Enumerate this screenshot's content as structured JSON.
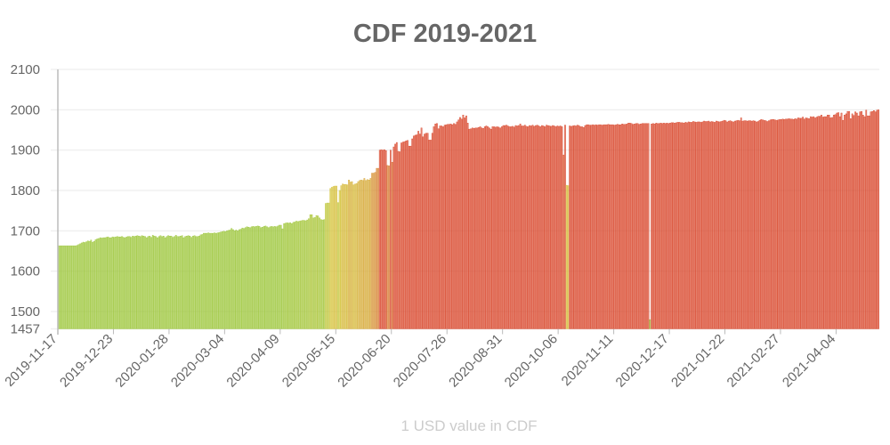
{
  "chart_data": {
    "type": "bar",
    "title": "CDF 2019-2021",
    "xlabel": "1 USD value in CDF",
    "ylabel": "",
    "ylim": [
      1457,
      2100
    ],
    "yticks": [
      "1457",
      "1500",
      "1600",
      "1700",
      "1800",
      "1900",
      "2000",
      "2100"
    ],
    "xticks": [
      "2019-11-17",
      "2019-12-23",
      "2020-01-28",
      "2020-03-04",
      "2020-04-09",
      "2020-05-15",
      "2020-06-20",
      "2020-07-26",
      "2020-08-31",
      "2020-10-06",
      "2020-11-11",
      "2020-12-17",
      "2021-01-22",
      "2021-02-27",
      "2021-04-04"
    ],
    "x_interval": "daily",
    "grid": true,
    "legend": "none",
    "colors": {
      "low": "#9cc63a",
      "mid": "#d6c63c",
      "high": "#d8452a"
    },
    "values": [
      1663,
      1663,
      1663,
      1663,
      1663,
      1663,
      1663,
      1663,
      1663,
      1663,
      1663,
      1663,
      1664,
      1666,
      1668,
      1670,
      1672,
      1671,
      1673,
      1675,
      1674,
      1677,
      1672,
      1674,
      1678,
      1680,
      1681,
      1683,
      1682,
      1683,
      1683,
      1684,
      1685,
      1683,
      1683,
      1685,
      1684,
      1685,
      1686,
      1685,
      1685,
      1686,
      1684,
      1683,
      1685,
      1686,
      1686,
      1684,
      1687,
      1686,
      1687,
      1688,
      1687,
      1686,
      1688,
      1687,
      1686,
      1683,
      1686,
      1687,
      1684,
      1689,
      1687,
      1686,
      1683,
      1686,
      1688,
      1686,
      1687,
      1683,
      1686,
      1688,
      1687,
      1687,
      1684,
      1686,
      1689,
      1686,
      1686,
      1687,
      1688,
      1683,
      1686,
      1687,
      1688,
      1687,
      1684,
      1687,
      1688,
      1686,
      1686,
      1687,
      1690,
      1691,
      1694,
      1694,
      1694,
      1695,
      1694,
      1694,
      1694,
      1695,
      1694,
      1695,
      1696,
      1697,
      1698,
      1699,
      1698,
      1700,
      1701,
      1702,
      1706,
      1703,
      1700,
      1702,
      1700,
      1703,
      1704,
      1707,
      1706,
      1708,
      1710,
      1709,
      1708,
      1710,
      1711,
      1710,
      1711,
      1712,
      1711,
      1708,
      1709,
      1711,
      1712,
      1710,
      1708,
      1710,
      1711,
      1710,
      1711,
      1710,
      1712,
      1714,
      1714,
      1705,
      1718,
      1719,
      1720,
      1719,
      1720,
      1718,
      1721,
      1722,
      1724,
      1723,
      1724,
      1725,
      1726,
      1726,
      1725,
      1727,
      1730,
      1740,
      1740,
      1732,
      1733,
      1738,
      1737,
      1732,
      1728,
      1727,
      1728,
      1768,
      1769,
      1769,
      1805,
      1808,
      1810,
      1811,
      1811,
      1770,
      1800,
      1812,
      1816,
      1815,
      1815,
      1814,
      1826,
      1821,
      1822,
      1814,
      1816,
      1817,
      1822,
      1825,
      1826,
      1825,
      1830,
      1825,
      1827,
      1826,
      1830,
      1843,
      1843,
      1845,
      1855,
      1855,
      1900,
      1901,
      1900,
      1901,
      1899,
      1862,
      1861,
      1900,
      1870,
      1908,
      1915,
      1919,
      1897,
      1896,
      1918,
      1920,
      1921,
      1923,
      1924,
      1910,
      1910,
      1928,
      1935,
      1937,
      1938,
      1947,
      1940,
      1955,
      1933,
      1940,
      1942,
      1942,
      1925,
      1925,
      1942,
      1958,
      1965,
      1966,
      1953,
      1960,
      1960,
      1958,
      1962,
      1963,
      1964,
      1964,
      1965,
      1963,
      1966,
      1964,
      1970,
      1975,
      1981,
      1977,
      1987,
      1980,
      1985,
      1967,
      1952,
      1953,
      1955,
      1954,
      1955,
      1955,
      1956,
      1958,
      1955,
      1954,
      1958,
      1960,
      1958,
      1955,
      1952,
      1958,
      1958,
      1957,
      1958,
      1957,
      1955,
      1958,
      1961,
      1961,
      1962,
      1960,
      1958,
      1958,
      1959,
      1957,
      1961,
      1960,
      1961,
      1965,
      1960,
      1960,
      1962,
      1959,
      1958,
      1961,
      1960,
      1962,
      1959,
      1961,
      1962,
      1960,
      1958,
      1961,
      1960,
      1958,
      1962,
      1961,
      1960,
      1959,
      1961,
      1960,
      1958,
      1960,
      1959,
      1960,
      1958,
      1888,
      1962,
      1813,
      1812,
      1960,
      1959,
      1960,
      1961,
      1960,
      1962,
      1961,
      1958,
      1958,
      1956,
      1961,
      1963,
      1963,
      1962,
      1962,
      1963,
      1962,
      1963,
      1962,
      1963,
      1963,
      1962,
      1963,
      1963,
      1963,
      1964,
      1963,
      1963,
      1963,
      1962,
      1963,
      1964,
      1963,
      1963,
      1965,
      1964,
      1964,
      1965,
      1967,
      1967,
      1966,
      1964,
      1965,
      1966,
      1966,
      1964,
      1965,
      1966,
      1966,
      1966,
      1966,
      1966,
      1480,
      1965,
      1966,
      1965,
      1967,
      1966,
      1966,
      1967,
      1966,
      1967,
      1966,
      1967,
      1966,
      1967,
      1968,
      1968,
      1967,
      1968,
      1969,
      1969,
      1968,
      1968,
      1967,
      1969,
      1968,
      1970,
      1969,
      1969,
      1971,
      1970,
      1969,
      1970,
      1970,
      1969,
      1970,
      1972,
      1971,
      1971,
      1972,
      1970,
      1971,
      1970,
      1969,
      1972,
      1971,
      1970,
      1971,
      1972,
      1974,
      1973,
      1970,
      1972,
      1973,
      1971,
      1970,
      1972,
      1973,
      1974,
      1973,
      1980,
      1972,
      1973,
      1973,
      1972,
      1973,
      1973,
      1972,
      1973,
      1972,
      1970,
      1971,
      1974,
      1976,
      1975,
      1974,
      1973,
      1971,
      1973,
      1975,
      1976,
      1976,
      1975,
      1974,
      1975,
      1976,
      1976,
      1977,
      1976,
      1977,
      1977,
      1978,
      1977,
      1977,
      1976,
      1978,
      1977,
      1980,
      1979,
      1979,
      1982,
      1977,
      1980,
      1979,
      1978,
      1983,
      1982,
      1983,
      1980,
      1982,
      1984,
      1984,
      1987,
      1982,
      1983,
      1983,
      1987,
      1987,
      1980,
      1981,
      1987,
      1988,
      1992,
      1993,
      1983,
      1992,
      1974,
      1987,
      1990,
      1996,
      1996,
      1978,
      1990,
      1986,
      1995,
      1992,
      1985,
      1995,
      1996,
      1987,
      1983,
      1999,
      1985,
      1985,
      1995,
      1996,
      1998,
      1995,
      1999,
      2000
    ]
  }
}
